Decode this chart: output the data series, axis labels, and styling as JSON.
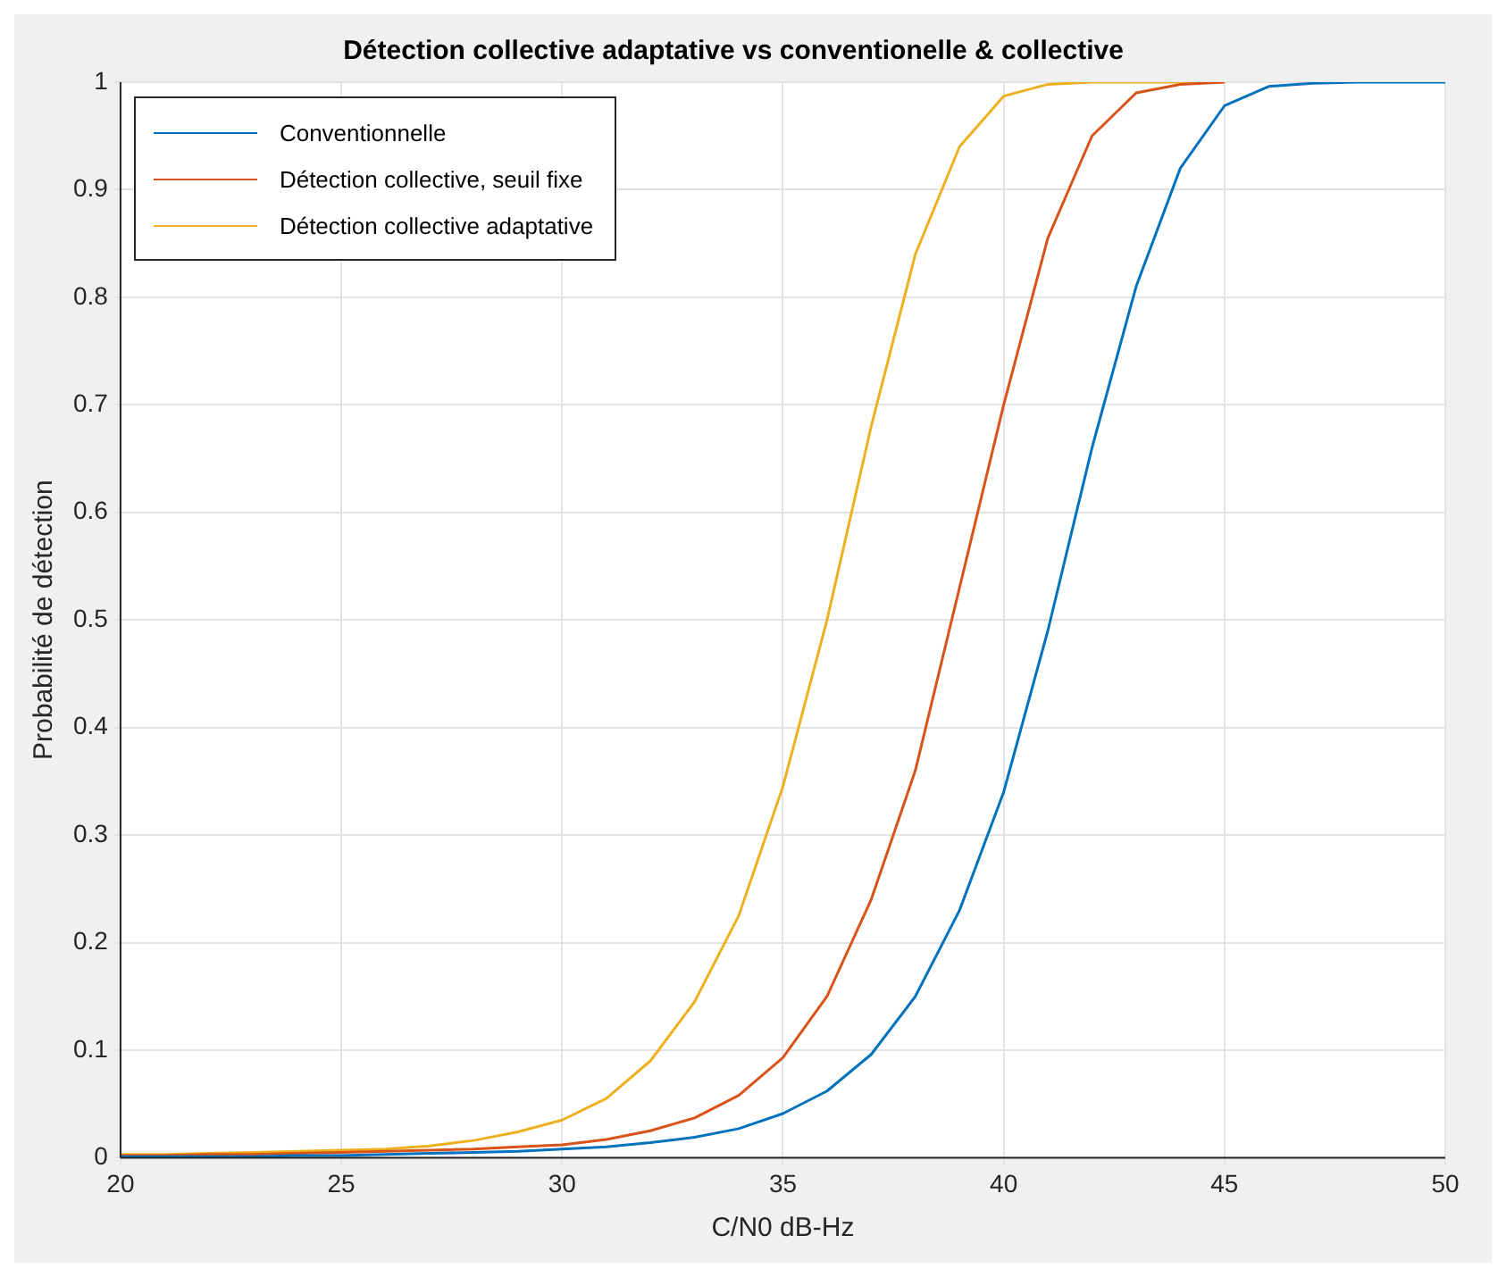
{
  "chart_data": {
    "type": "line",
    "title": "Détection collective adaptative vs conventionelle & collective",
    "xlabel": "C/N0 dB-Hz",
    "ylabel": "Probabilité de détection",
    "xlim": [
      20,
      50
    ],
    "xticks": [
      20,
      25,
      30,
      35,
      40,
      45,
      50
    ],
    "ylim": [
      0,
      1
    ],
    "yticks": [
      0,
      0.1,
      0.2,
      0.3,
      0.4,
      0.5,
      0.6,
      0.7,
      0.8,
      0.9,
      1
    ],
    "grid": true,
    "legend": "top left",
    "marker": "none",
    "line_style": "solid",
    "series": [
      {
        "name": "Conventionnelle",
        "color": "#0072bd",
        "x": [
          20,
          21,
          22,
          23,
          24,
          25,
          26,
          27,
          28,
          29,
          30,
          31,
          32,
          33,
          34,
          35,
          36,
          37,
          38,
          39,
          40,
          41,
          42,
          43,
          44,
          45,
          46,
          47,
          48,
          49,
          50
        ],
        "values": [
          0.001,
          0.001,
          0.001,
          0.001,
          0.002,
          0.002,
          0.003,
          0.004,
          0.005,
          0.006,
          0.008,
          0.01,
          0.014,
          0.019,
          0.027,
          0.041,
          0.062,
          0.096,
          0.15,
          0.23,
          0.34,
          0.49,
          0.66,
          0.81,
          0.92,
          0.978,
          0.996,
          0.999,
          1,
          1,
          1
        ]
      },
      {
        "name": "Détection collective, seuil fixe",
        "color": "#d95319",
        "x": [
          20,
          21,
          22,
          23,
          24,
          25,
          26,
          27,
          28,
          29,
          30,
          31,
          32,
          33,
          34,
          35,
          36,
          37,
          38,
          39,
          40,
          41,
          42,
          43,
          44,
          45
        ],
        "values": [
          0.002,
          0.002,
          0.003,
          0.003,
          0.004,
          0.005,
          0.006,
          0.007,
          0.008,
          0.01,
          0.012,
          0.017,
          0.025,
          0.037,
          0.058,
          0.093,
          0.15,
          0.24,
          0.36,
          0.53,
          0.7,
          0.855,
          0.95,
          0.99,
          0.998,
          1
        ]
      },
      {
        "name": "Détection collective adaptative",
        "color": "#edb120",
        "x": [
          20,
          21,
          22,
          23,
          24,
          25,
          26,
          27,
          28,
          29,
          30,
          31,
          32,
          33,
          34,
          35,
          36,
          37,
          38,
          39,
          40,
          41,
          42,
          43,
          44,
          45
        ],
        "values": [
          0.003,
          0.003,
          0.004,
          0.005,
          0.006,
          0.007,
          0.008,
          0.011,
          0.016,
          0.024,
          0.035,
          0.055,
          0.09,
          0.145,
          0.225,
          0.345,
          0.5,
          0.68,
          0.84,
          0.94,
          0.987,
          0.998,
          1,
          1,
          1,
          1
        ]
      }
    ]
  }
}
